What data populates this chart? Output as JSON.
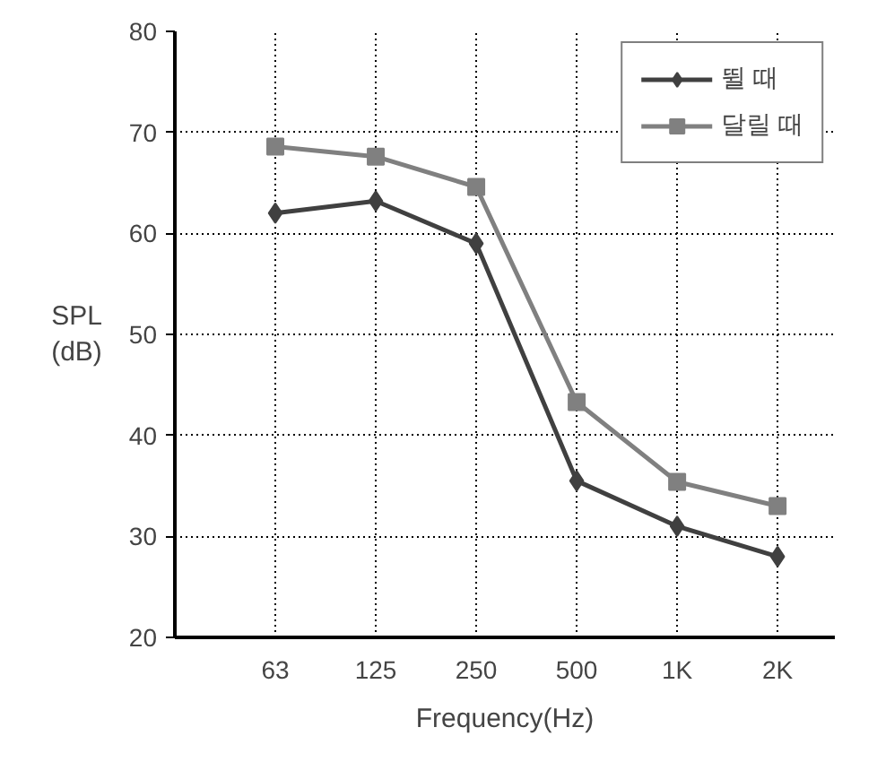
{
  "chart_data": {
    "type": "line",
    "xlabel": "Frequency(Hz)",
    "ylabel": "SPL (dB)",
    "categories": [
      "63",
      "125",
      "250",
      "500",
      "1K",
      "2K"
    ],
    "ylim": [
      20,
      80
    ],
    "yticks": [
      20,
      30,
      40,
      50,
      60,
      70,
      80
    ],
    "grid": true,
    "legend": "top right",
    "series": [
      {
        "name": "뛸 때",
        "color": "#404040",
        "marker": "diamond",
        "values": [
          62,
          63.2,
          59,
          35.5,
          31,
          28
        ]
      },
      {
        "name": "달릴 때",
        "color": "#808080",
        "marker": "square",
        "values": [
          68.6,
          67.6,
          64.6,
          43.3,
          35.4,
          33
        ]
      }
    ]
  }
}
